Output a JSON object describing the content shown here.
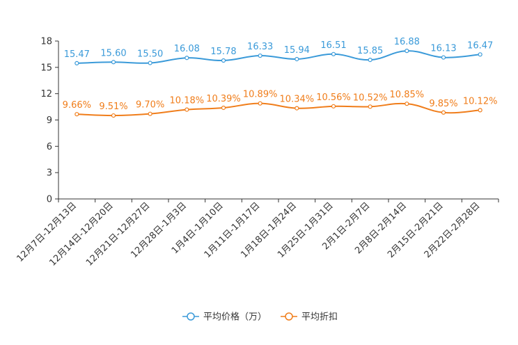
{
  "chart_data": {
    "type": "line",
    "title": "",
    "xlabel": "",
    "ylabel": "",
    "ylim": [
      0,
      18
    ],
    "yticks": [
      0,
      3,
      6,
      9,
      12,
      15,
      18
    ],
    "grid": false,
    "legend_position": "bottom-center",
    "categories": [
      "12月7日-12月13日",
      "12月14日-12月20日",
      "12月21日-12月27日",
      "12月28日-1月3日",
      "1月4日-1月10日",
      "1月11日-1月17日",
      "1月18日-1月24日",
      "1月25日-1月31日",
      "2月1日-2月7日",
      "2月8日-2月14日",
      "2月15日-2月21日",
      "2月22日-2月28日"
    ],
    "series": [
      {
        "name": "平均价格（万）",
        "color": "#3a9ad9",
        "values": [
          15.47,
          15.6,
          15.5,
          16.08,
          15.78,
          16.33,
          15.94,
          16.51,
          15.85,
          16.88,
          16.13,
          16.47
        ],
        "labels": [
          "15.47",
          "15.60",
          "15.50",
          "16.08",
          "15.78",
          "16.33",
          "15.94",
          "16.51",
          "15.85",
          "16.88",
          "16.13",
          "16.47"
        ]
      },
      {
        "name": "平均折扣",
        "color": "#f07d1a",
        "values": [
          9.66,
          9.51,
          9.7,
          10.18,
          10.39,
          10.89,
          10.34,
          10.56,
          10.52,
          10.85,
          9.85,
          10.12
        ],
        "labels": [
          "9.66%",
          "9.51%",
          "9.70%",
          "10.18%",
          "10.39%",
          "10.89%",
          "10.34%",
          "10.56%",
          "10.52%",
          "10.85%",
          "9.85%",
          "10.12%"
        ]
      }
    ]
  }
}
